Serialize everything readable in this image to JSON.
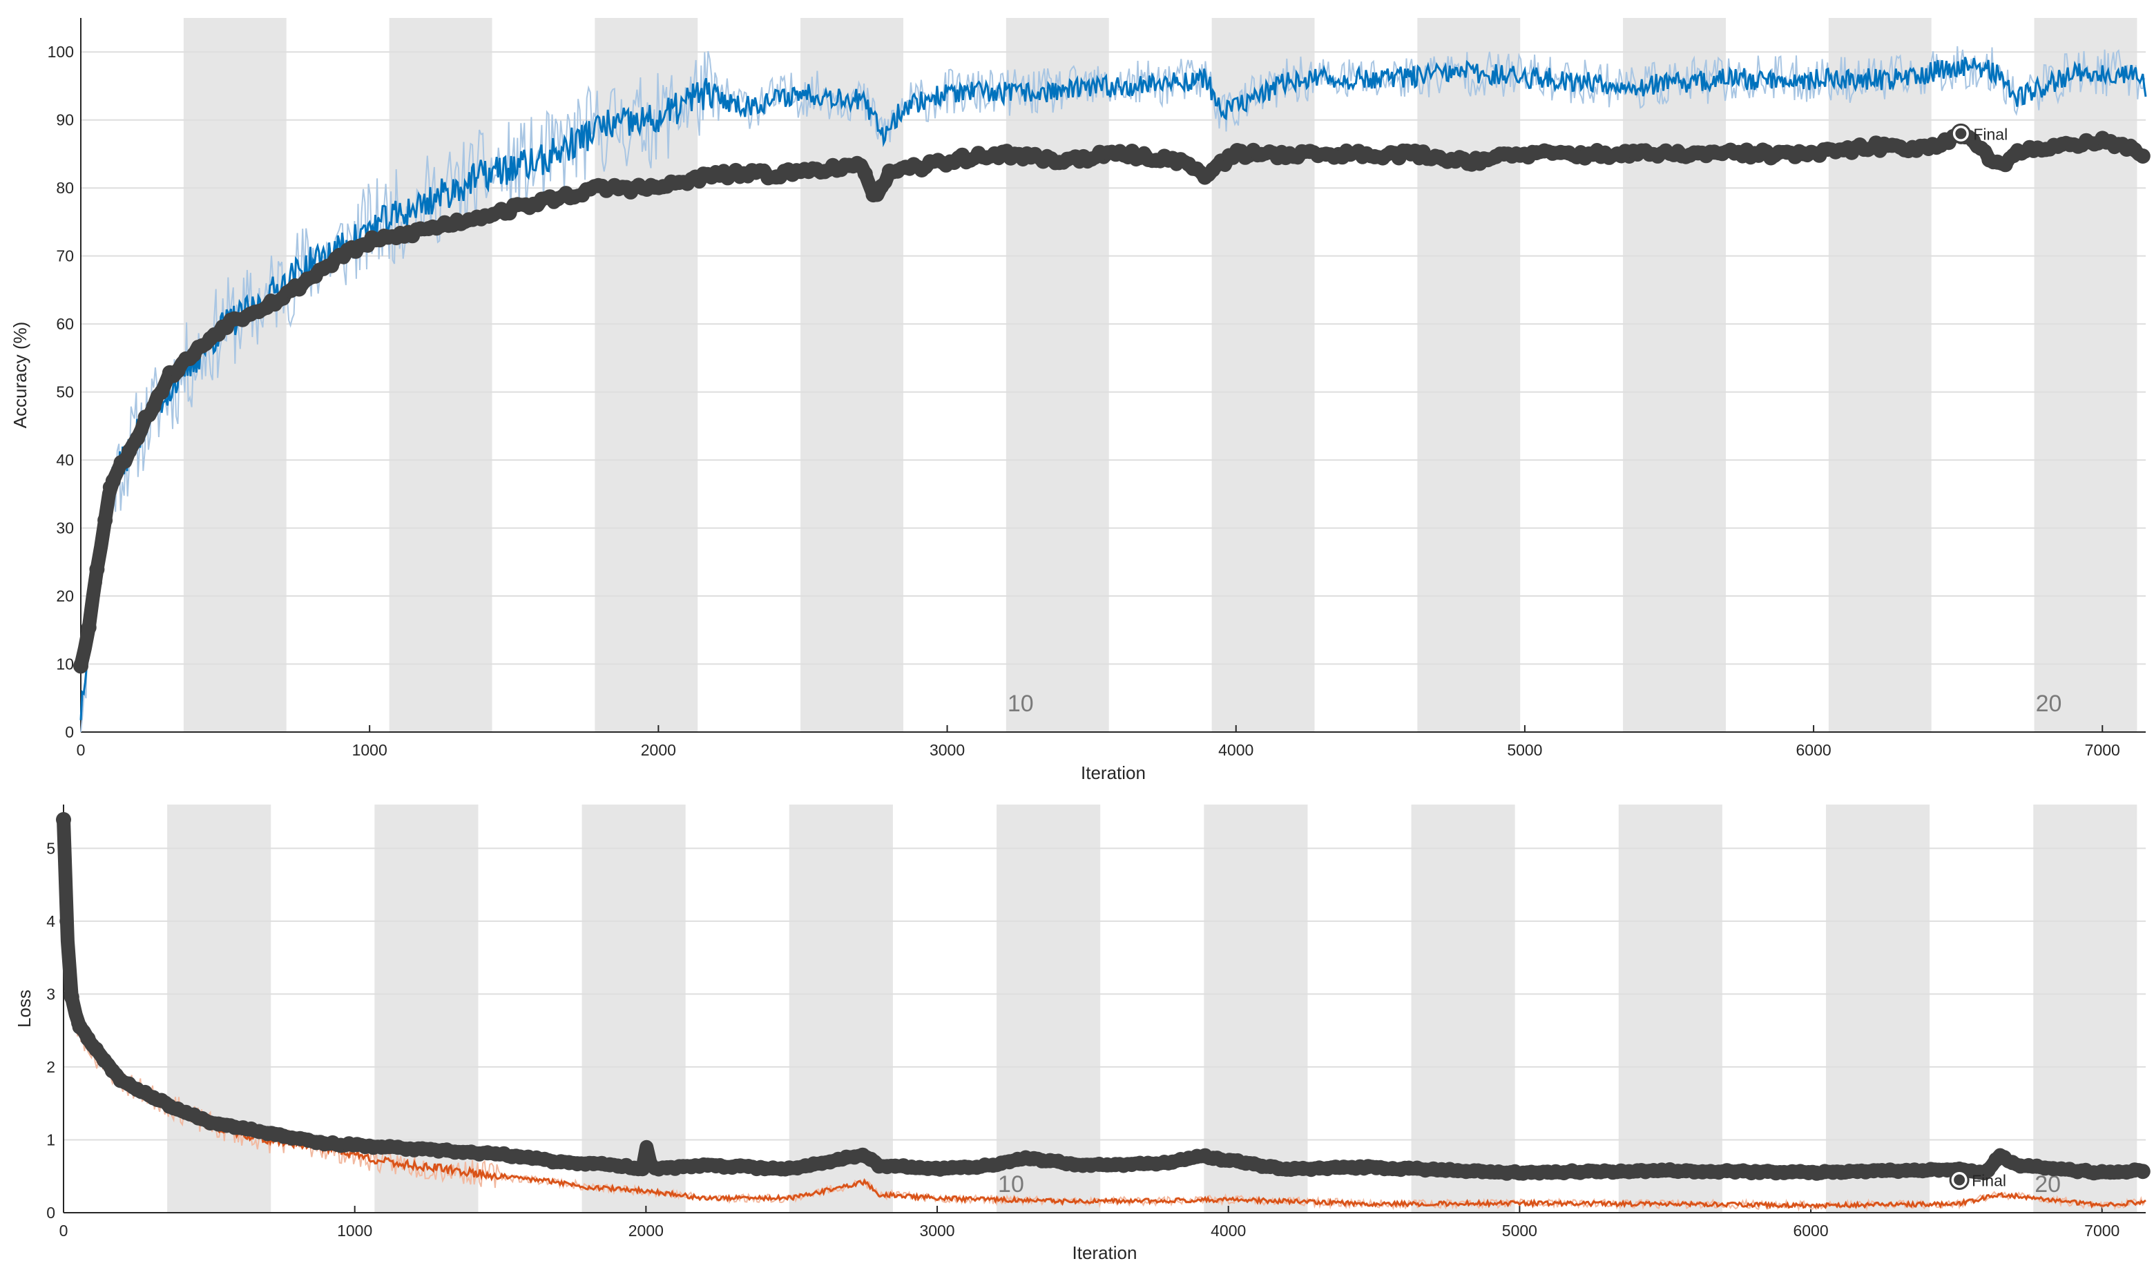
{
  "colors": {
    "epoch_band": "#e6e6e6",
    "grid": "#dedede",
    "accuracy_raw": "#a9c6e3",
    "accuracy_smoothed": "#0072bd",
    "loss_raw": "#f2b9a0",
    "loss_smoothed": "#d95319",
    "validation": "#404040",
    "axis": "#262626"
  },
  "chart_data": [
    {
      "type": "line",
      "title": "",
      "xlabel": "Iteration",
      "ylabel": "Accuracy (%)",
      "xlim": [
        0,
        7150
      ],
      "ylim": [
        0,
        105
      ],
      "xticks": [
        "0",
        "1000",
        "2000",
        "3000",
        "4000",
        "5000",
        "6000",
        "7000"
      ],
      "yticks": [
        "0",
        "10",
        "20",
        "30",
        "40",
        "50",
        "60",
        "70",
        "80",
        "90",
        "100"
      ],
      "grid": true,
      "epoch_boundary_iterations": [
        0,
        356,
        712,
        1068,
        1424,
        1780,
        2136,
        2492,
        2848,
        3204,
        3560,
        3916,
        4272,
        4628,
        4984,
        5340,
        5696,
        6052,
        6408,
        6764,
        7120
      ],
      "epoch_labels": [
        {
          "text": "10",
          "x": 3204
        },
        {
          "text": "20",
          "x": 6764
        }
      ],
      "final_label": {
        "text": "Final",
        "x": 6510,
        "y": 88
      },
      "series": [
        {
          "role": "training-smoothed",
          "x": [
            0,
            25,
            50,
            100,
            150,
            200,
            300,
            400,
            500,
            600,
            700,
            800,
            900,
            1000,
            1200,
            1400,
            1600,
            1800,
            2000,
            2150,
            2300,
            2500,
            2700,
            2780,
            2850,
            3000,
            3300,
            3600,
            3900,
            3950,
            4200,
            4500,
            4800,
            5100,
            5400,
            5700,
            6000,
            6300,
            6510,
            6650,
            6700,
            6900,
            7100,
            7150
          ],
          "y": [
            3,
            14,
            24,
            36,
            40,
            44,
            50,
            55,
            60,
            62,
            66,
            69,
            71,
            74,
            78,
            82,
            84,
            89,
            90,
            94,
            92,
            94,
            93,
            88,
            92,
            94,
            94,
            95,
            96,
            91,
            96,
            96,
            97,
            96,
            95,
            96,
            96,
            96,
            98,
            97,
            93,
            97,
            97,
            95
          ]
        },
        {
          "role": "validation",
          "x": [
            0,
            25,
            50,
            100,
            150,
            200,
            300,
            400,
            500,
            600,
            700,
            800,
            900,
            1000,
            1200,
            1400,
            1600,
            1800,
            2000,
            2200,
            2400,
            2600,
            2700,
            2750,
            2800,
            3000,
            3200,
            3400,
            3600,
            3800,
            3900,
            4000,
            4200,
            4400,
            4600,
            4800,
            5000,
            5200,
            5400,
            5600,
            5800,
            6000,
            6200,
            6400,
            6510,
            6600,
            6650,
            6700,
            6800,
            7000,
            7150
          ],
          "y": [
            10,
            15,
            22,
            36,
            40,
            44,
            52,
            56,
            60,
            62,
            64,
            67,
            70,
            72,
            74,
            76,
            78,
            80,
            80,
            82,
            82,
            83,
            83,
            79,
            82,
            84,
            85,
            84,
            85,
            84,
            82,
            85,
            85,
            85,
            85,
            84,
            85,
            85,
            85,
            85,
            85,
            85,
            86,
            86,
            88,
            85,
            83,
            85,
            86,
            87,
            85
          ]
        }
      ]
    },
    {
      "type": "line",
      "title": "",
      "xlabel": "Iteration",
      "ylabel": "Loss",
      "xlim": [
        0,
        7150
      ],
      "ylim": [
        0,
        5.6
      ],
      "xticks": [
        "0",
        "1000",
        "2000",
        "3000",
        "4000",
        "5000",
        "6000",
        "7000"
      ],
      "yticks": [
        "0",
        "1",
        "2",
        "3",
        "4",
        "5"
      ],
      "grid": true,
      "epoch_boundary_iterations": [
        0,
        356,
        712,
        1068,
        1424,
        1780,
        2136,
        2492,
        2848,
        3204,
        3560,
        3916,
        4272,
        4628,
        4984,
        5340,
        5696,
        6052,
        6408,
        6764,
        7120
      ],
      "epoch_labels": [
        {
          "text": "10",
          "x": 3204
        },
        {
          "text": "20",
          "x": 6764
        }
      ],
      "final_label": {
        "text": "Final",
        "x": 6510,
        "y": 0.45
      },
      "series": [
        {
          "role": "training-smoothed",
          "x": [
            0,
            10,
            25,
            50,
            100,
            200,
            300,
            400,
            500,
            700,
            900,
            1100,
            1300,
            1500,
            1700,
            1800,
            2000,
            2200,
            2500,
            2750,
            2800,
            3000,
            3500,
            4000,
            4500,
            5000,
            5500,
            6000,
            6500,
            6650,
            7000,
            7150
          ],
          "y": [
            5.4,
            3.5,
            2.8,
            2.5,
            2.2,
            1.8,
            1.6,
            1.4,
            1.2,
            1.0,
            0.9,
            0.7,
            0.6,
            0.5,
            0.42,
            0.35,
            0.3,
            0.2,
            0.2,
            0.42,
            0.25,
            0.2,
            0.15,
            0.18,
            0.12,
            0.13,
            0.12,
            0.1,
            0.12,
            0.25,
            0.1,
            0.15
          ]
        },
        {
          "role": "validation",
          "x": [
            0,
            10,
            25,
            50,
            100,
            200,
            300,
            400,
            500,
            700,
            900,
            1100,
            1300,
            1500,
            1700,
            1900,
            1990,
            2000,
            2020,
            2200,
            2500,
            2750,
            2800,
            3000,
            3200,
            3300,
            3500,
            3800,
            3900,
            4200,
            4500,
            5000,
            5500,
            6000,
            6500,
            6600,
            6650,
            6700,
            7000,
            7150
          ],
          "y": [
            5.4,
            4.0,
            3.0,
            2.6,
            2.3,
            1.8,
            1.6,
            1.4,
            1.25,
            1.1,
            0.95,
            0.9,
            0.85,
            0.8,
            0.7,
            0.65,
            0.6,
            0.95,
            0.6,
            0.65,
            0.6,
            0.8,
            0.65,
            0.6,
            0.65,
            0.75,
            0.65,
            0.68,
            0.78,
            0.6,
            0.62,
            0.55,
            0.58,
            0.55,
            0.6,
            0.55,
            0.8,
            0.65,
            0.55,
            0.58
          ]
        }
      ]
    }
  ]
}
